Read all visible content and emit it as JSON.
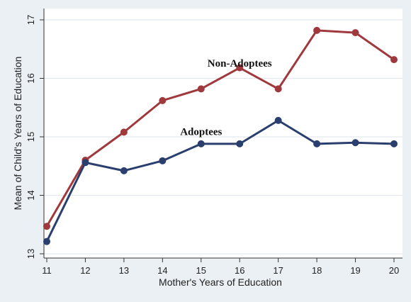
{
  "chart_data": {
    "type": "line",
    "title": "",
    "xlabel": "Mother's Years of Education",
    "ylabel": "Mean of Child's Years of Education",
    "x": [
      11,
      12,
      13,
      14,
      15,
      16,
      17,
      18,
      19,
      20
    ],
    "xlim": [
      11,
      20
    ],
    "ylim": [
      13,
      17
    ],
    "yticks": [
      13,
      14,
      15,
      16,
      17
    ],
    "grid": true,
    "legend": "none",
    "series": [
      {
        "name": "Non-Adoptees",
        "color": "#a0393d",
        "values": [
          13.47,
          14.6,
          15.08,
          15.62,
          15.82,
          16.18,
          15.82,
          16.82,
          16.78,
          16.32
        ]
      },
      {
        "name": "Adoptees",
        "color": "#2b3f6e",
        "values": [
          13.21,
          14.56,
          14.42,
          14.59,
          14.88,
          14.88,
          15.28,
          14.88,
          14.9,
          14.88
        ]
      }
    ],
    "annotations": [
      {
        "text": "Non-Adoptees",
        "series": "Non-Adoptees"
      },
      {
        "text": "Adoptees",
        "series": "Adoptees"
      }
    ]
  }
}
